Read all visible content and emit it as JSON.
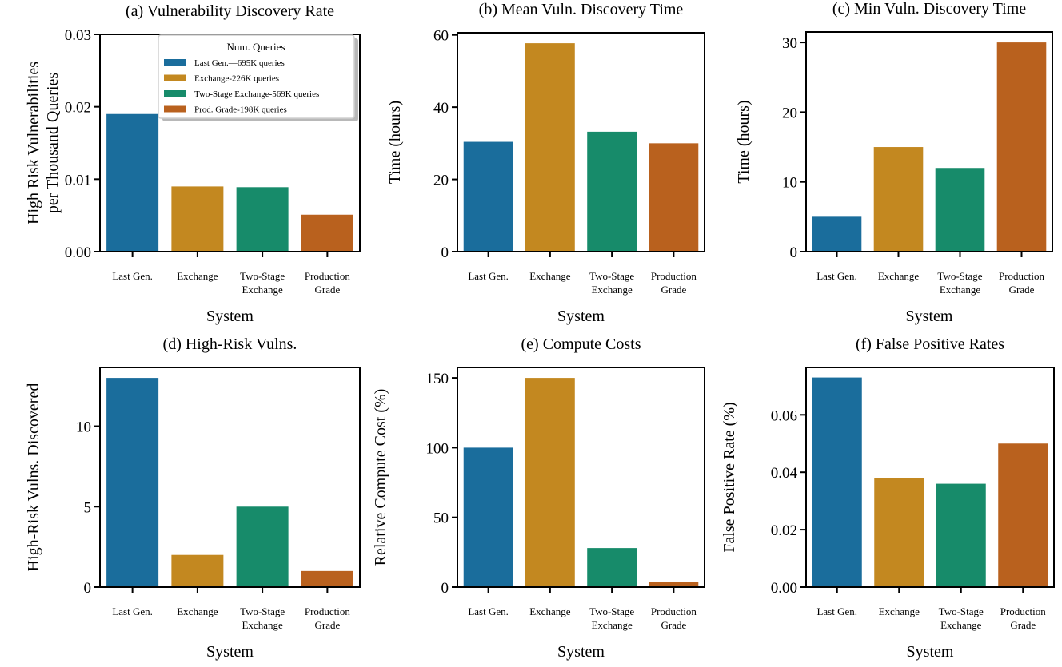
{
  "colors": {
    "Last Gen.": "#1a6d9c",
    "Exchange": "#c38820",
    "Two-Stage Exchange": "#178b6a",
    "Production Grade": "#b9611e"
  },
  "chart_data": [
    {
      "type": "bar",
      "title": "(a) Vulnerability Discovery Rate",
      "xlabel": "System",
      "ylabel": [
        "High Risk Vulnerabilities",
        "per Thousand Queries"
      ],
      "categories": [
        [
          "Last Gen."
        ],
        [
          "Exchange"
        ],
        [
          "Two-Stage",
          "Exchange"
        ],
        [
          "Production",
          "Grade"
        ]
      ],
      "values": [
        0.019,
        0.009,
        0.0089,
        0.0051
      ],
      "ylim": [
        0,
        0.03
      ],
      "yticks": [
        "0.00",
        "0.01",
        "0.02",
        "0.03"
      ],
      "ytick_values": [
        0,
        0.01,
        0.02,
        0.03
      ],
      "grid": false,
      "legend": {
        "title": "Num. Queries",
        "placement": "upper-right",
        "entries": [
          "Last Gen.—695K queries",
          "Exchange-226K queries",
          "Two-Stage Exchange-569K queries",
          "Prod. Grade-198K queries"
        ]
      }
    },
    {
      "type": "bar",
      "title": "(b) Mean Vuln. Discovery Time",
      "xlabel": "System",
      "ylabel": [
        "Time (hours)"
      ],
      "categories": [
        [
          "Last Gen."
        ],
        [
          "Exchange"
        ],
        [
          "Two-Stage",
          "Exchange"
        ],
        [
          "Production",
          "Grade"
        ]
      ],
      "values": [
        30.4,
        57.7,
        33.2,
        30.0
      ],
      "ylim": [
        0,
        60.6
      ],
      "yticks": [
        "0",
        "20",
        "40",
        "60"
      ],
      "ytick_values": [
        0,
        20,
        40,
        60
      ],
      "grid": false
    },
    {
      "type": "bar",
      "title": "(c) Min Vuln. Discovery Time",
      "xlabel": "System",
      "ylabel": [
        "Time (hours)"
      ],
      "categories": [
        [
          "Last Gen."
        ],
        [
          "Exchange"
        ],
        [
          "Two-Stage",
          "Exchange"
        ],
        [
          "Production",
          "Grade"
        ]
      ],
      "values": [
        5,
        15,
        12,
        30
      ],
      "ylim": [
        0,
        31.5
      ],
      "yticks": [
        "0",
        "10",
        "20",
        "30"
      ],
      "ytick_values": [
        0,
        10,
        20,
        30
      ],
      "grid": false
    },
    {
      "type": "bar",
      "title": "(d) High-Risk Vulns.",
      "xlabel": "System",
      "ylabel": [
        "High-Risk Vulns. Discovered"
      ],
      "categories": [
        [
          "Last Gen."
        ],
        [
          "Exchange"
        ],
        [
          "Two-Stage",
          "Exchange"
        ],
        [
          "Production",
          "Grade"
        ]
      ],
      "values": [
        13,
        2,
        5,
        1
      ],
      "ylim": [
        0,
        13.65
      ],
      "yticks": [
        "0",
        "5",
        "10"
      ],
      "ytick_values": [
        0,
        5,
        10
      ],
      "grid": false
    },
    {
      "type": "bar",
      "title": "(e) Compute Costs",
      "xlabel": "System",
      "ylabel": [
        "Relative Compute Cost (%)"
      ],
      "categories": [
        [
          "Last Gen."
        ],
        [
          "Exchange"
        ],
        [
          "Two-Stage",
          "Exchange"
        ],
        [
          "Production",
          "Grade"
        ]
      ],
      "values": [
        100,
        150,
        28,
        3.5
      ],
      "ylim": [
        0,
        157.5
      ],
      "yticks": [
        "0",
        "50",
        "100",
        "150"
      ],
      "ytick_values": [
        0,
        50,
        100,
        150
      ],
      "grid": false
    },
    {
      "type": "bar",
      "title": "(f) False Positive Rates",
      "xlabel": "System",
      "ylabel": [
        "False Positive Rate (%)"
      ],
      "categories": [
        [
          "Last Gen."
        ],
        [
          "Exchange"
        ],
        [
          "Two-Stage",
          "Exchange"
        ],
        [
          "Production",
          "Grade"
        ]
      ],
      "values": [
        0.073,
        0.038,
        0.036,
        0.05
      ],
      "ylim": [
        0,
        0.0765
      ],
      "yticks": [
        "0.00",
        "0.02",
        "0.04",
        "0.06"
      ],
      "ytick_values": [
        0,
        0.02,
        0.04,
        0.06
      ],
      "grid": false
    }
  ]
}
